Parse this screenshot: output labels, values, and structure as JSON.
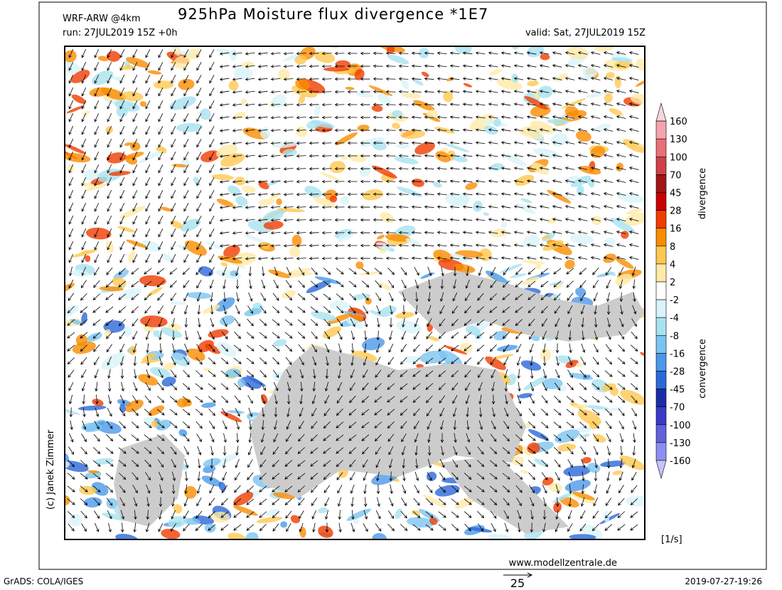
{
  "header": {
    "model": "WRF-ARW @4km",
    "title": "925hPa Moisture flux divergence *1E7",
    "run": "run: 27JUL2019 15Z +0h",
    "valid": "valid: Sat, 27JUL2019 15Z"
  },
  "colorbar": {
    "labels": [
      160,
      130,
      100,
      70,
      45,
      28,
      16,
      8,
      4,
      2,
      -2,
      -4,
      -8,
      -16,
      -28,
      -45,
      -70,
      -100,
      -130,
      -160
    ],
    "colors": [
      "#fcd4dc",
      "#f4a4ac",
      "#e87078",
      "#d04048",
      "#a01418",
      "#c80000",
      "#f03c00",
      "#fa8c00",
      "#ffc850",
      "#ffeaa8",
      "#ffffff",
      "#d8f4fa",
      "#a8e2f0",
      "#7cc4f0",
      "#4c98e8",
      "#2c68d8",
      "#1a2ca8",
      "#3a3ac8",
      "#6262dc",
      "#8e8ef2",
      "#c4c4fc"
    ],
    "upper_label": "divergence",
    "lower_label": "convergence",
    "unit": "[1/s]"
  },
  "footer": {
    "copyright": "(c) Janek Zimmer",
    "website": "www.modellzentrale.de",
    "software": "GrADS: COLA/IGES",
    "timestamp": "2019-07-27-19:26",
    "vector_scale": "25"
  }
}
